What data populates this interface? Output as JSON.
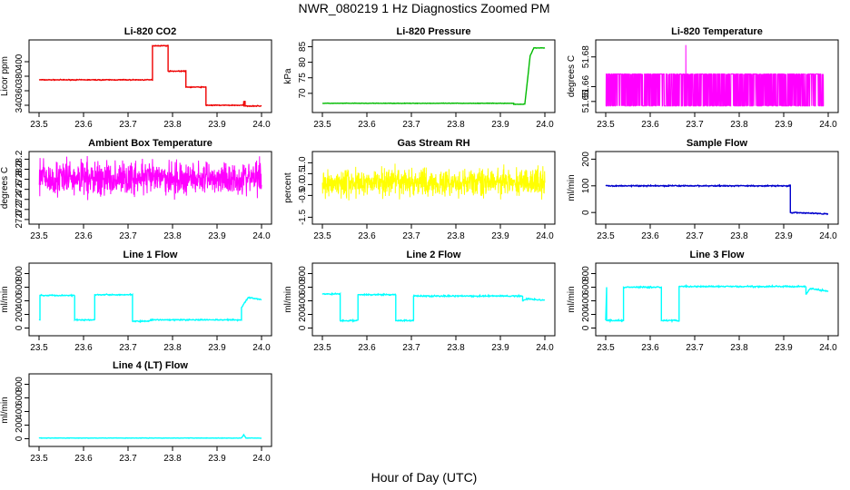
{
  "title": "NWR_080219  1 Hz Diagnostics Zoomed PM",
  "xlabel": "Hour of Day (UTC)",
  "colors": {
    "red": "#ee0000",
    "green": "#00bb00",
    "magenta": "#ff00ff",
    "yellow": "#ffff00",
    "blue": "#0000cc",
    "cyan": "#00ffff"
  },
  "chart_data": [
    {
      "type": "line",
      "title": "Li-820 CO2",
      "ylabel": "Licor ppm",
      "color": "red",
      "xticks": [
        "23.5",
        "23.6",
        "23.7",
        "23.8",
        "23.9",
        "24.0"
      ],
      "xlim": [
        23.5,
        24.0
      ],
      "yticks": [
        {
          "v": 340,
          "label": "340"
        },
        {
          "v": 360,
          "label": "360"
        },
        {
          "v": 380,
          "label": "380"
        },
        {
          "v": 400,
          "label": "400"
        }
      ],
      "ylim": [
        335,
        425
      ],
      "series": {
        "x": [
          23.5,
          23.755,
          23.755,
          23.79,
          23.79,
          23.83,
          23.83,
          23.875,
          23.875,
          23.96,
          23.96,
          23.963,
          23.963,
          24.0
        ],
        "y": [
          375,
          375,
          422,
          422,
          387,
          387,
          365,
          365,
          340,
          340,
          345,
          345,
          339,
          339
        ],
        "noise": 0.4
      }
    },
    {
      "type": "line",
      "title": "Li-820 Pressure",
      "ylabel": "kPa",
      "color": "green",
      "xticks": [
        "23.5",
        "23.6",
        "23.7",
        "23.8",
        "23.9",
        "24.0"
      ],
      "xlim": [
        23.5,
        24.0
      ],
      "yticks": [
        {
          "v": 70,
          "label": "70"
        },
        {
          "v": 75,
          "label": "75"
        },
        {
          "v": 80,
          "label": "80"
        },
        {
          "v": 85,
          "label": "85"
        }
      ],
      "ylim": [
        65,
        86
      ],
      "series": {
        "x": [
          23.5,
          23.93,
          23.93,
          23.955,
          23.963,
          23.967,
          23.975,
          24.0
        ],
        "y": [
          66.8,
          66.8,
          66.5,
          66.5,
          77,
          82,
          84.6,
          84.6
        ],
        "noise": 0.05
      }
    },
    {
      "type": "noisy",
      "title": "Li-820 Temperature",
      "ylabel": "degrees C",
      "color": "magenta",
      "xticks": [
        "23.5",
        "23.6",
        "23.7",
        "23.8",
        "23.9",
        "24.0"
      ],
      "xlim": [
        23.5,
        24.0
      ],
      "yticks": [
        {
          "v": 51.65,
          "label": "51.65"
        },
        {
          "v": 51.66,
          "label": "51.66"
        },
        {
          "v": 51.68,
          "label": "51.68"
        }
      ],
      "ylim": [
        51.645,
        51.689
      ],
      "series": {
        "xrange": [
          23.5,
          23.99
        ],
        "base": 51.647,
        "spread": 0.0215,
        "binary": true,
        "spike": {
          "x": 23.68,
          "y": 51.688
        }
      }
    },
    {
      "type": "noisy",
      "title": "Ambient Box Temperature",
      "ylabel": "degrees C",
      "color": "magenta",
      "xticks": [
        "23.5",
        "23.6",
        "23.7",
        "23.8",
        "23.9",
        "24.0"
      ],
      "xlim": [
        23.5,
        24.0
      ],
      "yticks": [
        {
          "v": 27.0,
          "label": "27.0"
        },
        {
          "v": 27.2,
          "label": "27.2"
        },
        {
          "v": 27.4,
          "label": "27.4"
        },
        {
          "v": 27.6,
          "label": "27.6"
        },
        {
          "v": 27.8,
          "label": "27.8"
        },
        {
          "v": 28.0,
          "label": "28.0"
        },
        {
          "v": 28.2,
          "label": "28.2"
        }
      ],
      "ylim": [
        26.98,
        28.28
      ],
      "series": {
        "xrange": [
          23.5,
          24.0
        ],
        "base": 27.82,
        "spread": 0.26
      }
    },
    {
      "type": "noisy",
      "title": "Gas Stream RH",
      "ylabel": "percent",
      "color": "yellow",
      "xticks": [
        "23.5",
        "23.6",
        "23.7",
        "23.8",
        "23.9",
        "24.0"
      ],
      "xlim": [
        23.5,
        24.0
      ],
      "yticks": [
        {
          "v": -1.5,
          "label": "-1.5"
        },
        {
          "v": -0.5,
          "label": "-0.5"
        },
        {
          "v": 0.0,
          "label": "0.0"
        },
        {
          "v": 0.5,
          "label": "0.5"
        },
        {
          "v": 1.0,
          "label": "1.0"
        }
      ],
      "ylim": [
        -1.65,
        1.35
      ],
      "series": {
        "xrange": [
          23.5,
          24.0
        ],
        "base": 0.1,
        "spread": 0.5
      }
    },
    {
      "type": "line",
      "title": "Sample Flow",
      "ylabel": "ml/min",
      "color": "blue",
      "xticks": [
        "23.5",
        "23.6",
        "23.7",
        "23.8",
        "23.9",
        "24.0"
      ],
      "xlim": [
        23.5,
        24.0
      ],
      "yticks": [
        {
          "v": 0,
          "label": "0"
        },
        {
          "v": 100,
          "label": "100"
        },
        {
          "v": 200,
          "label": "200"
        }
      ],
      "ylim": [
        -30,
        215
      ],
      "series": {
        "x": [
          23.5,
          23.915,
          23.915,
          24.0
        ],
        "y": [
          100,
          100,
          0,
          -5
        ],
        "noise": 1.5
      }
    },
    {
      "type": "line",
      "title": "Line 1 Flow",
      "ylabel": "ml/min",
      "color": "cyan",
      "xticks": [
        "23.5",
        "23.6",
        "23.7",
        "23.8",
        "23.9",
        "24.0"
      ],
      "xlim": [
        23.5,
        24.0
      ],
      "yticks": [
        {
          "v": 0,
          "label": "0"
        },
        {
          "v": 200,
          "label": "200"
        },
        {
          "v": 400,
          "label": "400"
        },
        {
          "v": 600,
          "label": "600"
        },
        {
          "v": 800,
          "label": "800"
        }
      ],
      "ylim": [
        -60,
        900
      ],
      "series": {
        "x": [
          23.5,
          23.502,
          23.502,
          23.58,
          23.58,
          23.625,
          23.625,
          23.71,
          23.71,
          23.75,
          23.75,
          23.955,
          23.955,
          23.97,
          23.97,
          24.0
        ],
        "y": [
          120,
          120,
          480,
          480,
          120,
          120,
          490,
          490,
          100,
          100,
          120,
          120,
          300,
          450,
          450,
          420
        ],
        "noise": 6
      }
    },
    {
      "type": "line",
      "title": "Line 2 Flow",
      "ylabel": "ml/min",
      "color": "cyan",
      "xticks": [
        "23.5",
        "23.6",
        "23.7",
        "23.8",
        "23.9",
        "24.0"
      ],
      "xlim": [
        23.5,
        24.0
      ],
      "yticks": [
        {
          "v": 0,
          "label": "0"
        },
        {
          "v": 200,
          "label": "200"
        },
        {
          "v": 400,
          "label": "400"
        },
        {
          "v": 600,
          "label": "600"
        },
        {
          "v": 800,
          "label": "800"
        }
      ],
      "ylim": [
        -60,
        900
      ],
      "series": {
        "x": [
          23.5,
          23.54,
          23.54,
          23.58,
          23.58,
          23.665,
          23.665,
          23.705,
          23.705,
          23.95,
          23.95,
          23.96,
          23.96,
          24.0
        ],
        "y": [
          500,
          500,
          110,
          110,
          490,
          490,
          110,
          110,
          470,
          470,
          400,
          430,
          430,
          410
        ],
        "noise": 7
      }
    },
    {
      "type": "line",
      "title": "Line 3 Flow",
      "ylabel": "ml/min",
      "color": "cyan",
      "xticks": [
        "23.5",
        "23.6",
        "23.7",
        "23.8",
        "23.9",
        "24.0"
      ],
      "xlim": [
        23.5,
        24.0
      ],
      "yticks": [
        {
          "v": 0,
          "label": "0"
        },
        {
          "v": 200,
          "label": "200"
        },
        {
          "v": 400,
          "label": "400"
        },
        {
          "v": 600,
          "label": "600"
        },
        {
          "v": 800,
          "label": "800"
        }
      ],
      "ylim": [
        -60,
        900
      ],
      "series": {
        "x": [
          23.5,
          23.502,
          23.502,
          23.54,
          23.54,
          23.625,
          23.625,
          23.665,
          23.665,
          23.95,
          23.95,
          23.96,
          23.96,
          24.0
        ],
        "y": [
          110,
          600,
          110,
          110,
          600,
          600,
          110,
          110,
          610,
          610,
          500,
          580,
          580,
          540
        ],
        "noise": 7
      }
    },
    {
      "type": "line",
      "title": "Line 4 (LT) Flow",
      "ylabel": "ml/min",
      "color": "cyan",
      "xticks": [
        "23.5",
        "23.6",
        "23.7",
        "23.8",
        "23.9",
        "24.0"
      ],
      "xlim": [
        23.5,
        24.0
      ],
      "yticks": [
        {
          "v": 0,
          "label": "0"
        },
        {
          "v": 200,
          "label": "200"
        },
        {
          "v": 400,
          "label": "400"
        },
        {
          "v": 600,
          "label": "600"
        },
        {
          "v": 800,
          "label": "800"
        }
      ],
      "ylim": [
        -60,
        900
      ],
      "series": {
        "x": [
          23.5,
          23.955,
          23.96,
          23.965,
          24.0
        ],
        "y": [
          10,
          10,
          60,
          10,
          10
        ],
        "noise": 2
      }
    }
  ]
}
